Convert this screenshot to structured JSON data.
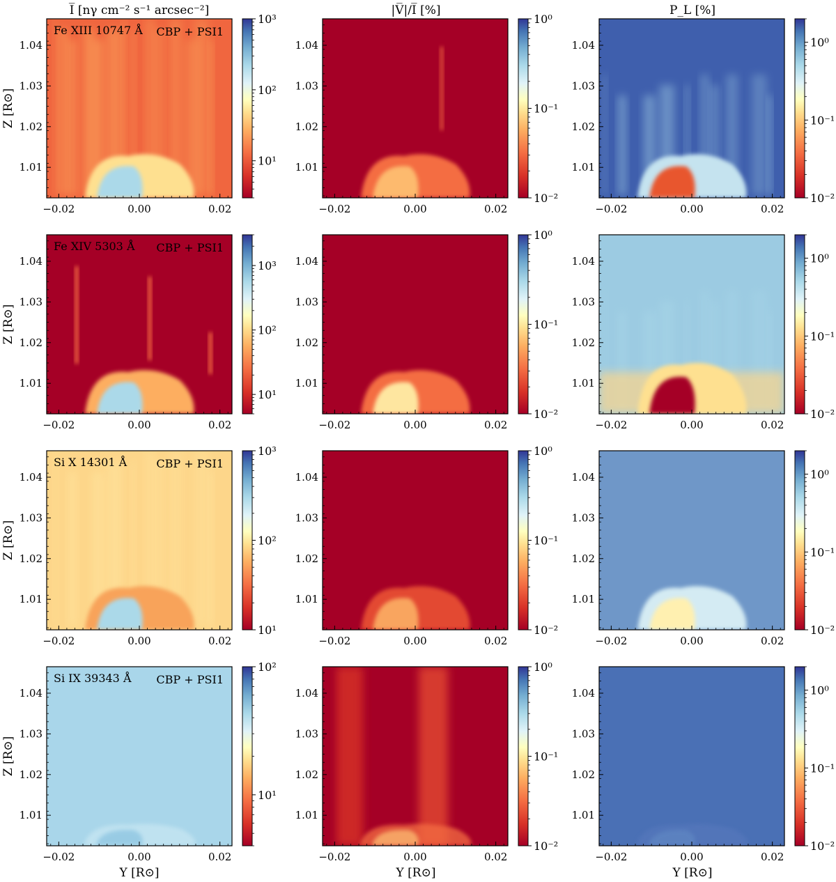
{
  "figure": {
    "col_titles": [
      "I̅ [nγ cm⁻² s⁻¹ arcsec⁻²]",
      "|V̅|/I̅ [%]",
      "P_L [%]"
    ],
    "x_axis_label": "Y [R⊙]",
    "y_axis_label": "Z [R⊙]",
    "x_ticks": [
      "−0.02",
      "0.00",
      "0.02"
    ],
    "y_ticks": [
      "1.01",
      "1.02",
      "1.03",
      "1.04"
    ],
    "model_label": "CBP + PSI1",
    "colors": {
      "rdylbu_red": "#a50026",
      "rdylbu_orange": "#f46d43",
      "rdylbu_yellow": "#fee090",
      "rdylbu_lightblue": "#abd9e9",
      "rdylbu_blue": "#313695"
    }
  },
  "chart_data": [
    {
      "type": "heatmap",
      "row": 0,
      "col": 0,
      "line": "Fe XIII 10747 Å",
      "colorbar_ticks": [
        "10¹",
        "10²",
        "10³"
      ],
      "colorbar_range": [
        3,
        1000
      ],
      "log_scale": true,
      "xlim": [
        -0.023,
        0.023
      ],
      "ylim": [
        1.0025,
        1.0465
      ],
      "background": "#f0663f",
      "loop": "#abd9e9",
      "loop_rim": "#fee090"
    },
    {
      "type": "heatmap",
      "row": 0,
      "col": 1,
      "colorbar_ticks": [
        "10⁻²",
        "10⁻¹",
        "10⁰"
      ],
      "colorbar_range": [
        0.01,
        1
      ],
      "log_scale": true,
      "xlim": [
        -0.023,
        0.023
      ],
      "ylim": [
        1.0025,
        1.0465
      ],
      "background": "#a50026",
      "loop": "#fdba6e",
      "loop_rim": "#f46d43"
    },
    {
      "type": "heatmap",
      "row": 0,
      "col": 2,
      "colorbar_ticks": [
        "10⁻²",
        "10⁻¹",
        "10⁰"
      ],
      "colorbar_range": [
        0.01,
        2
      ],
      "log_scale": true,
      "xlim": [
        -0.023,
        0.023
      ],
      "ylim": [
        1.0025,
        1.0465
      ],
      "background": "#3f5fad",
      "loop": "#e8562f",
      "loop_rim": "#c5e3ef"
    },
    {
      "type": "heatmap",
      "row": 1,
      "col": 0,
      "line": "Fe XIV 5303 Å",
      "colorbar_ticks": [
        "10¹",
        "10²",
        "10³"
      ],
      "colorbar_range": [
        5,
        3000
      ],
      "log_scale": true,
      "xlim": [
        -0.023,
        0.023
      ],
      "ylim": [
        1.0025,
        1.0465
      ],
      "background": "#a50026",
      "loop": "#abd9e9",
      "loop_rim": "#fdae61"
    },
    {
      "type": "heatmap",
      "row": 1,
      "col": 1,
      "colorbar_ticks": [
        "10⁻²",
        "10⁻¹",
        "10⁰"
      ],
      "colorbar_range": [
        0.01,
        1
      ],
      "log_scale": true,
      "xlim": [
        -0.023,
        0.023
      ],
      "ylim": [
        1.0025,
        1.0465
      ],
      "background": "#a50026",
      "loop": "#fee6a0",
      "loop_rim": "#f46d43"
    },
    {
      "type": "heatmap",
      "row": 1,
      "col": 2,
      "colorbar_ticks": [
        "10⁻²",
        "10⁻¹",
        "10⁰"
      ],
      "colorbar_range": [
        0.01,
        2
      ],
      "log_scale": true,
      "xlim": [
        -0.023,
        0.023
      ],
      "ylim": [
        1.0025,
        1.0465
      ],
      "background": "#9ccbe2",
      "loop": "#a50026",
      "loop_rim": "#fee090"
    },
    {
      "type": "heatmap",
      "row": 2,
      "col": 0,
      "line": "Si X 14301 Å",
      "colorbar_ticks": [
        "10¹",
        "10²",
        "10³"
      ],
      "colorbar_range": [
        10,
        1000
      ],
      "log_scale": true,
      "xlim": [
        -0.023,
        0.023
      ],
      "ylim": [
        1.0025,
        1.0465
      ],
      "background": "#fdd68a",
      "loop": "#abd9e9",
      "loop_rim": "#f8a35a"
    },
    {
      "type": "heatmap",
      "row": 2,
      "col": 1,
      "colorbar_ticks": [
        "10⁻²",
        "10⁻¹",
        "10⁰"
      ],
      "colorbar_range": [
        0.01,
        1
      ],
      "log_scale": true,
      "xlim": [
        -0.023,
        0.023
      ],
      "ylim": [
        1.0025,
        1.0465
      ],
      "background": "#a50026",
      "loop": "#f9a55e",
      "loop_rim": "#e34a33"
    },
    {
      "type": "heatmap",
      "row": 2,
      "col": 2,
      "colorbar_ticks": [
        "10⁻²",
        "10⁻¹",
        "10⁰"
      ],
      "colorbar_range": [
        0.01,
        2
      ],
      "log_scale": true,
      "xlim": [
        -0.023,
        0.023
      ],
      "ylim": [
        1.0025,
        1.0465
      ],
      "background": "#6f97c8",
      "loop": "#fff0b0",
      "loop_rim": "#d4ebf3"
    },
    {
      "type": "heatmap",
      "row": 3,
      "col": 0,
      "line": "Si IX 39343 Å",
      "colorbar_ticks": [
        "10¹",
        "10²"
      ],
      "colorbar_range": [
        4,
        100
      ],
      "log_scale": true,
      "xlim": [
        -0.023,
        0.023
      ],
      "ylim": [
        1.0025,
        1.0465
      ],
      "background": "#a9d6ea",
      "loop": "#8cc4e1",
      "loop_rim": "#c7e6f2"
    },
    {
      "type": "heatmap",
      "row": 3,
      "col": 1,
      "colorbar_ticks": [
        "10⁻²",
        "10⁻¹",
        "10⁰"
      ],
      "colorbar_range": [
        0.01,
        1
      ],
      "log_scale": true,
      "xlim": [
        -0.023,
        0.023
      ],
      "ylim": [
        1.0025,
        1.0465
      ],
      "background": "#a50026",
      "loop": "#fdbe72",
      "loop_rim": "#f46d43"
    },
    {
      "type": "heatmap",
      "row": 3,
      "col": 2,
      "colorbar_ticks": [
        "10⁻²",
        "10⁻¹",
        "10⁰"
      ],
      "colorbar_range": [
        0.01,
        2
      ],
      "log_scale": true,
      "xlim": [
        -0.023,
        0.023
      ],
      "ylim": [
        1.0025,
        1.0465
      ],
      "background": "#4a70b5",
      "loop": "#5f86c2",
      "loop_rim": "#5477bb"
    }
  ]
}
